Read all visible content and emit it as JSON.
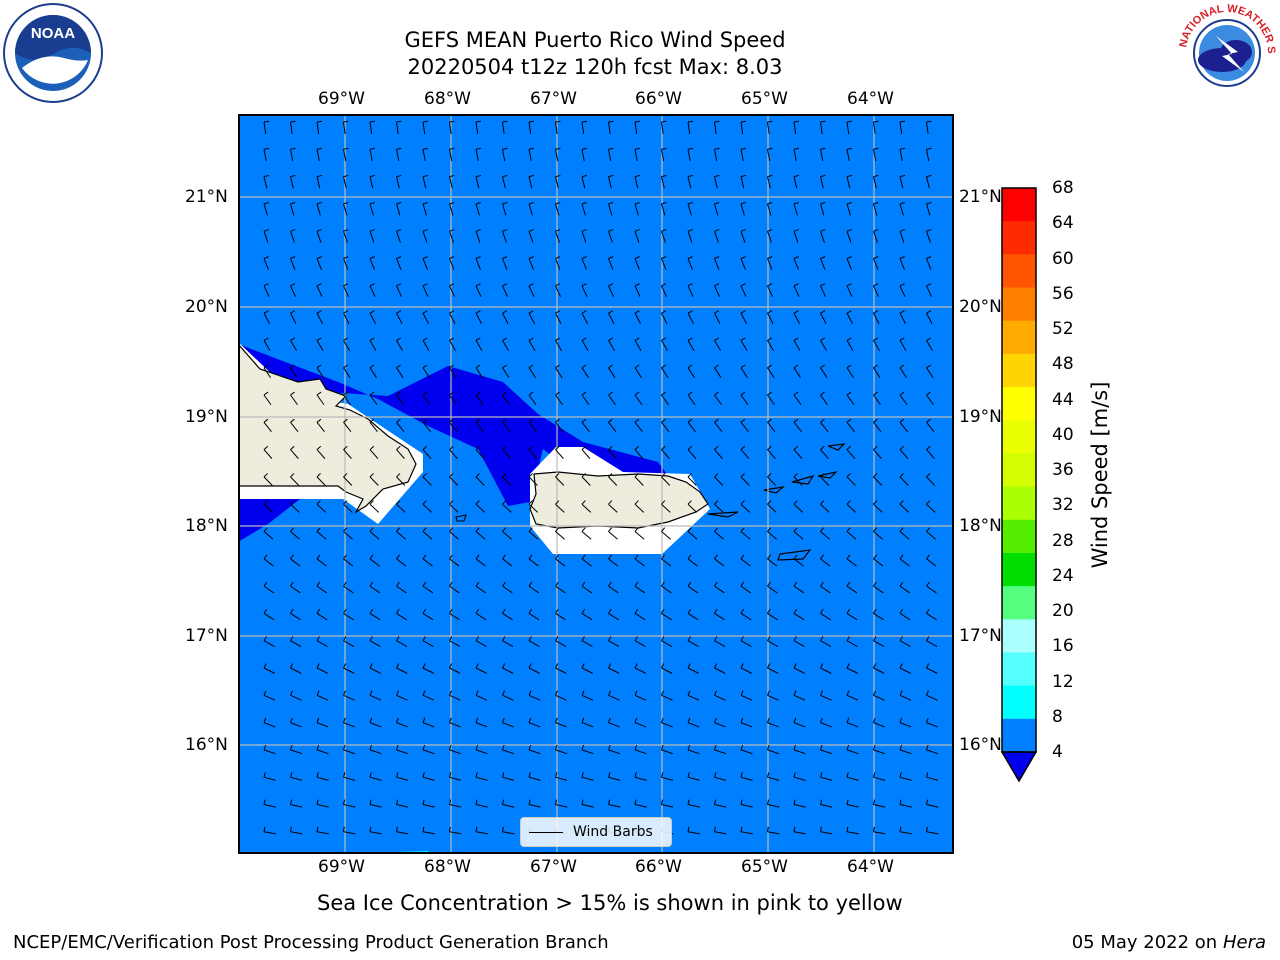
{
  "title": {
    "line1": "GEFS MEAN Puerto Rico Wind Speed",
    "line2": "20220504 t12z 120h fcst   Max: 8.03"
  },
  "map": {
    "lon_ticks_top": [
      "69°W",
      "68°W",
      "67°W",
      "66°W",
      "65°W",
      "64°W"
    ],
    "lon_ticks_bottom": [
      "69°W",
      "68°W",
      "67°W",
      "66°W",
      "65°W",
      "64°W"
    ],
    "lat_ticks_left": [
      "21°N",
      "20°N",
      "19°N",
      "18°N",
      "17°N",
      "16°N"
    ],
    "lat_ticks_right": [
      "21°N",
      "20°N",
      "19°N",
      "18°N",
      "17°N",
      "16°N"
    ],
    "lon_range": [
      -70.0,
      -63.25
    ],
    "lat_range": [
      15.0,
      21.75
    ],
    "ocean_color": "#0080ff",
    "strong_wind_color": "#0000ee",
    "land_color": "#eeecdc"
  },
  "colorbar": {
    "labels": [
      "68",
      "64",
      "60",
      "56",
      "52",
      "48",
      "44",
      "40",
      "36",
      "32",
      "28",
      "24",
      "20",
      "16",
      "12",
      "8",
      "4"
    ],
    "colors": [
      "#ff0000",
      "#ff2b00",
      "#ff5500",
      "#ff8000",
      "#ffaa00",
      "#ffd400",
      "#ffff00",
      "#eaff00",
      "#d4ff00",
      "#aaff00",
      "#55ee00",
      "#00dd00",
      "#55ff80",
      "#aaffff",
      "#55ffff",
      "#00ffff",
      "#0080ff"
    ],
    "extend_color": "#0000ee",
    "title": "Wind Speed [m/s]"
  },
  "legend": {
    "label": "Wind Barbs"
  },
  "subtitle": "Sea Ice Concentration > 15% is shown in pink to yellow",
  "footer": {
    "credit": "NCEP/EMC/Verification Post Processing Product Generation Branch",
    "date": "05 May 2022 on",
    "machine": "Hera"
  },
  "logos": {
    "left": "NOAA",
    "right": "NATIONAL WEATHER SERVICE"
  }
}
